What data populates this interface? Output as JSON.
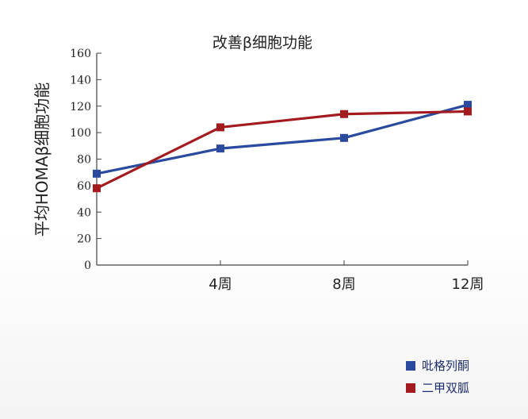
{
  "chart_data": {
    "type": "line",
    "title": "改善β细胞功能",
    "ylabel": "平均HOMAβ细胞功能",
    "xlabel": "",
    "ylim": [
      0,
      160
    ],
    "yticks": [
      "0",
      "20",
      "40",
      "60",
      "80",
      "100",
      "120",
      "140",
      "160"
    ],
    "categories": [
      "",
      "4周",
      "8周",
      "12周"
    ],
    "grid": false,
    "legend_position": "bottom-right",
    "series": [
      {
        "name": "吡格列酮",
        "color": "#2a4aa0",
        "values": [
          69,
          88,
          96,
          121
        ]
      },
      {
        "name": "二甲双胍",
        "color": "#a31a1f",
        "values": [
          58,
          104,
          114,
          116
        ]
      }
    ]
  }
}
